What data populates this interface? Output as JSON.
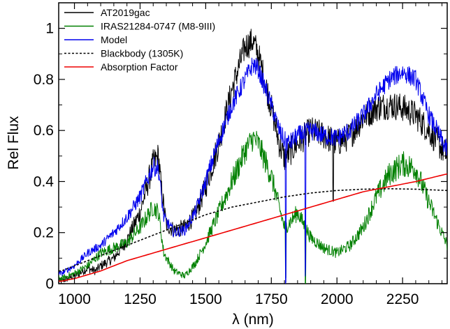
{
  "chart_data": {
    "type": "line",
    "xlabel": "λ (nm)",
    "ylabel": "Rel Flux",
    "xlim": [
      940,
      2420
    ],
    "ylim": [
      0,
      1.1
    ],
    "xticks": [
      1000,
      1250,
      1500,
      1750,
      2000,
      2250
    ],
    "xtick_labels": [
      "1000",
      "1250",
      "1500",
      "1750",
      "2000",
      "2250"
    ],
    "yticks": [
      0,
      0.2,
      0.4,
      0.6,
      0.8,
      1
    ],
    "ytick_labels": [
      "0",
      "0.2",
      "0.4",
      "0.6",
      "0.8",
      "1"
    ],
    "grid": false,
    "legend_position": "top-left",
    "series": [
      {
        "name": "AT2019gac",
        "color": "#000000",
        "style": "solid",
        "noise": 0.045,
        "x": [
          950,
          1000,
          1050,
          1080,
          1100,
          1150,
          1200,
          1250,
          1300,
          1320,
          1330,
          1350,
          1380,
          1420,
          1460,
          1500,
          1550,
          1600,
          1650,
          1680,
          1700,
          1750,
          1780,
          1800,
          1850,
          1900,
          1950,
          2000,
          2050,
          2100,
          2150,
          2200,
          2250,
          2300,
          2350,
          2420
        ],
        "y": [
          0.01,
          0.03,
          0.06,
          0.05,
          0.07,
          0.1,
          0.17,
          0.28,
          0.47,
          0.5,
          0.38,
          0.23,
          0.21,
          0.22,
          0.27,
          0.38,
          0.55,
          0.76,
          0.93,
          0.95,
          0.9,
          0.69,
          0.55,
          0.49,
          0.55,
          0.6,
          0.58,
          0.55,
          0.58,
          0.65,
          0.69,
          0.7,
          0.69,
          0.66,
          0.6,
          0.5
        ]
      },
      {
        "name": "IRAS21284-0747 (M8-9III)",
        "color": "#008000",
        "style": "solid",
        "noise": 0.04,
        "x": [
          950,
          1000,
          1050,
          1100,
          1150,
          1200,
          1250,
          1300,
          1320,
          1340,
          1380,
          1420,
          1460,
          1500,
          1550,
          1600,
          1650,
          1680,
          1700,
          1750,
          1780,
          1800,
          1820,
          1850,
          1900,
          1950,
          2000,
          2050,
          2100,
          2150,
          2200,
          2250,
          2300,
          2350,
          2420
        ],
        "y": [
          0.02,
          0.04,
          0.07,
          0.12,
          0.14,
          0.16,
          0.22,
          0.3,
          0.28,
          0.12,
          0.05,
          0.03,
          0.08,
          0.16,
          0.28,
          0.4,
          0.52,
          0.57,
          0.55,
          0.42,
          0.3,
          0.22,
          0.24,
          0.28,
          0.18,
          0.14,
          0.12,
          0.15,
          0.22,
          0.34,
          0.43,
          0.47,
          0.45,
          0.32,
          0.15
        ]
      },
      {
        "name": "Model",
        "color": "#0000ee",
        "style": "solid",
        "noise": 0.03,
        "x": [
          950,
          1000,
          1050,
          1100,
          1150,
          1200,
          1250,
          1300,
          1320,
          1340,
          1380,
          1420,
          1460,
          1500,
          1550,
          1600,
          1650,
          1680,
          1700,
          1750,
          1780,
          1800,
          1820,
          1850,
          1900,
          1950,
          2000,
          2050,
          2100,
          2150,
          2200,
          2250,
          2300,
          2350,
          2420
        ],
        "y": [
          0.04,
          0.07,
          0.12,
          0.15,
          0.2,
          0.26,
          0.34,
          0.46,
          0.45,
          0.26,
          0.2,
          0.21,
          0.28,
          0.4,
          0.56,
          0.7,
          0.8,
          0.86,
          0.84,
          0.7,
          0.6,
          0.56,
          0.55,
          0.58,
          0.6,
          0.58,
          0.57,
          0.6,
          0.66,
          0.74,
          0.8,
          0.83,
          0.8,
          0.66,
          0.52
        ]
      },
      {
        "name": "Blackbody (1305K)",
        "color": "#000000",
        "style": "dotted",
        "noise": 0,
        "x": [
          950,
          1000,
          1100,
          1200,
          1300,
          1400,
          1500,
          1600,
          1700,
          1800,
          1900,
          2000,
          2100,
          2200,
          2300,
          2420
        ],
        "y": [
          0.05,
          0.07,
          0.11,
          0.15,
          0.19,
          0.23,
          0.27,
          0.3,
          0.32,
          0.34,
          0.355,
          0.365,
          0.37,
          0.372,
          0.37,
          0.365
        ]
      },
      {
        "name": "Absorption Factor",
        "color": "#ee0000",
        "style": "solid",
        "noise": 0,
        "x": [
          950,
          1000,
          1100,
          1200,
          1300,
          1400,
          1500,
          1600,
          1700,
          1800,
          1900,
          2000,
          2100,
          2200,
          2300,
          2420
        ],
        "y": [
          0.01,
          0.02,
          0.05,
          0.09,
          0.12,
          0.15,
          0.18,
          0.21,
          0.24,
          0.27,
          0.3,
          0.33,
          0.36,
          0.38,
          0.4,
          0.43
        ]
      }
    ],
    "absorption_dips": [
      {
        "series": "Model",
        "x": 1805,
        "depth": 0.55
      },
      {
        "series": "Model",
        "x": 1880,
        "depth": 0.55
      },
      {
        "series": "IRAS21284-0747 (M8-9III)",
        "x": 1805,
        "depth": 0.22
      },
      {
        "series": "IRAS21284-0747 (M8-9III)",
        "x": 1880,
        "depth": 0.2
      },
      {
        "series": "AT2019gac",
        "x": 1985,
        "depth": 0.22
      }
    ]
  }
}
